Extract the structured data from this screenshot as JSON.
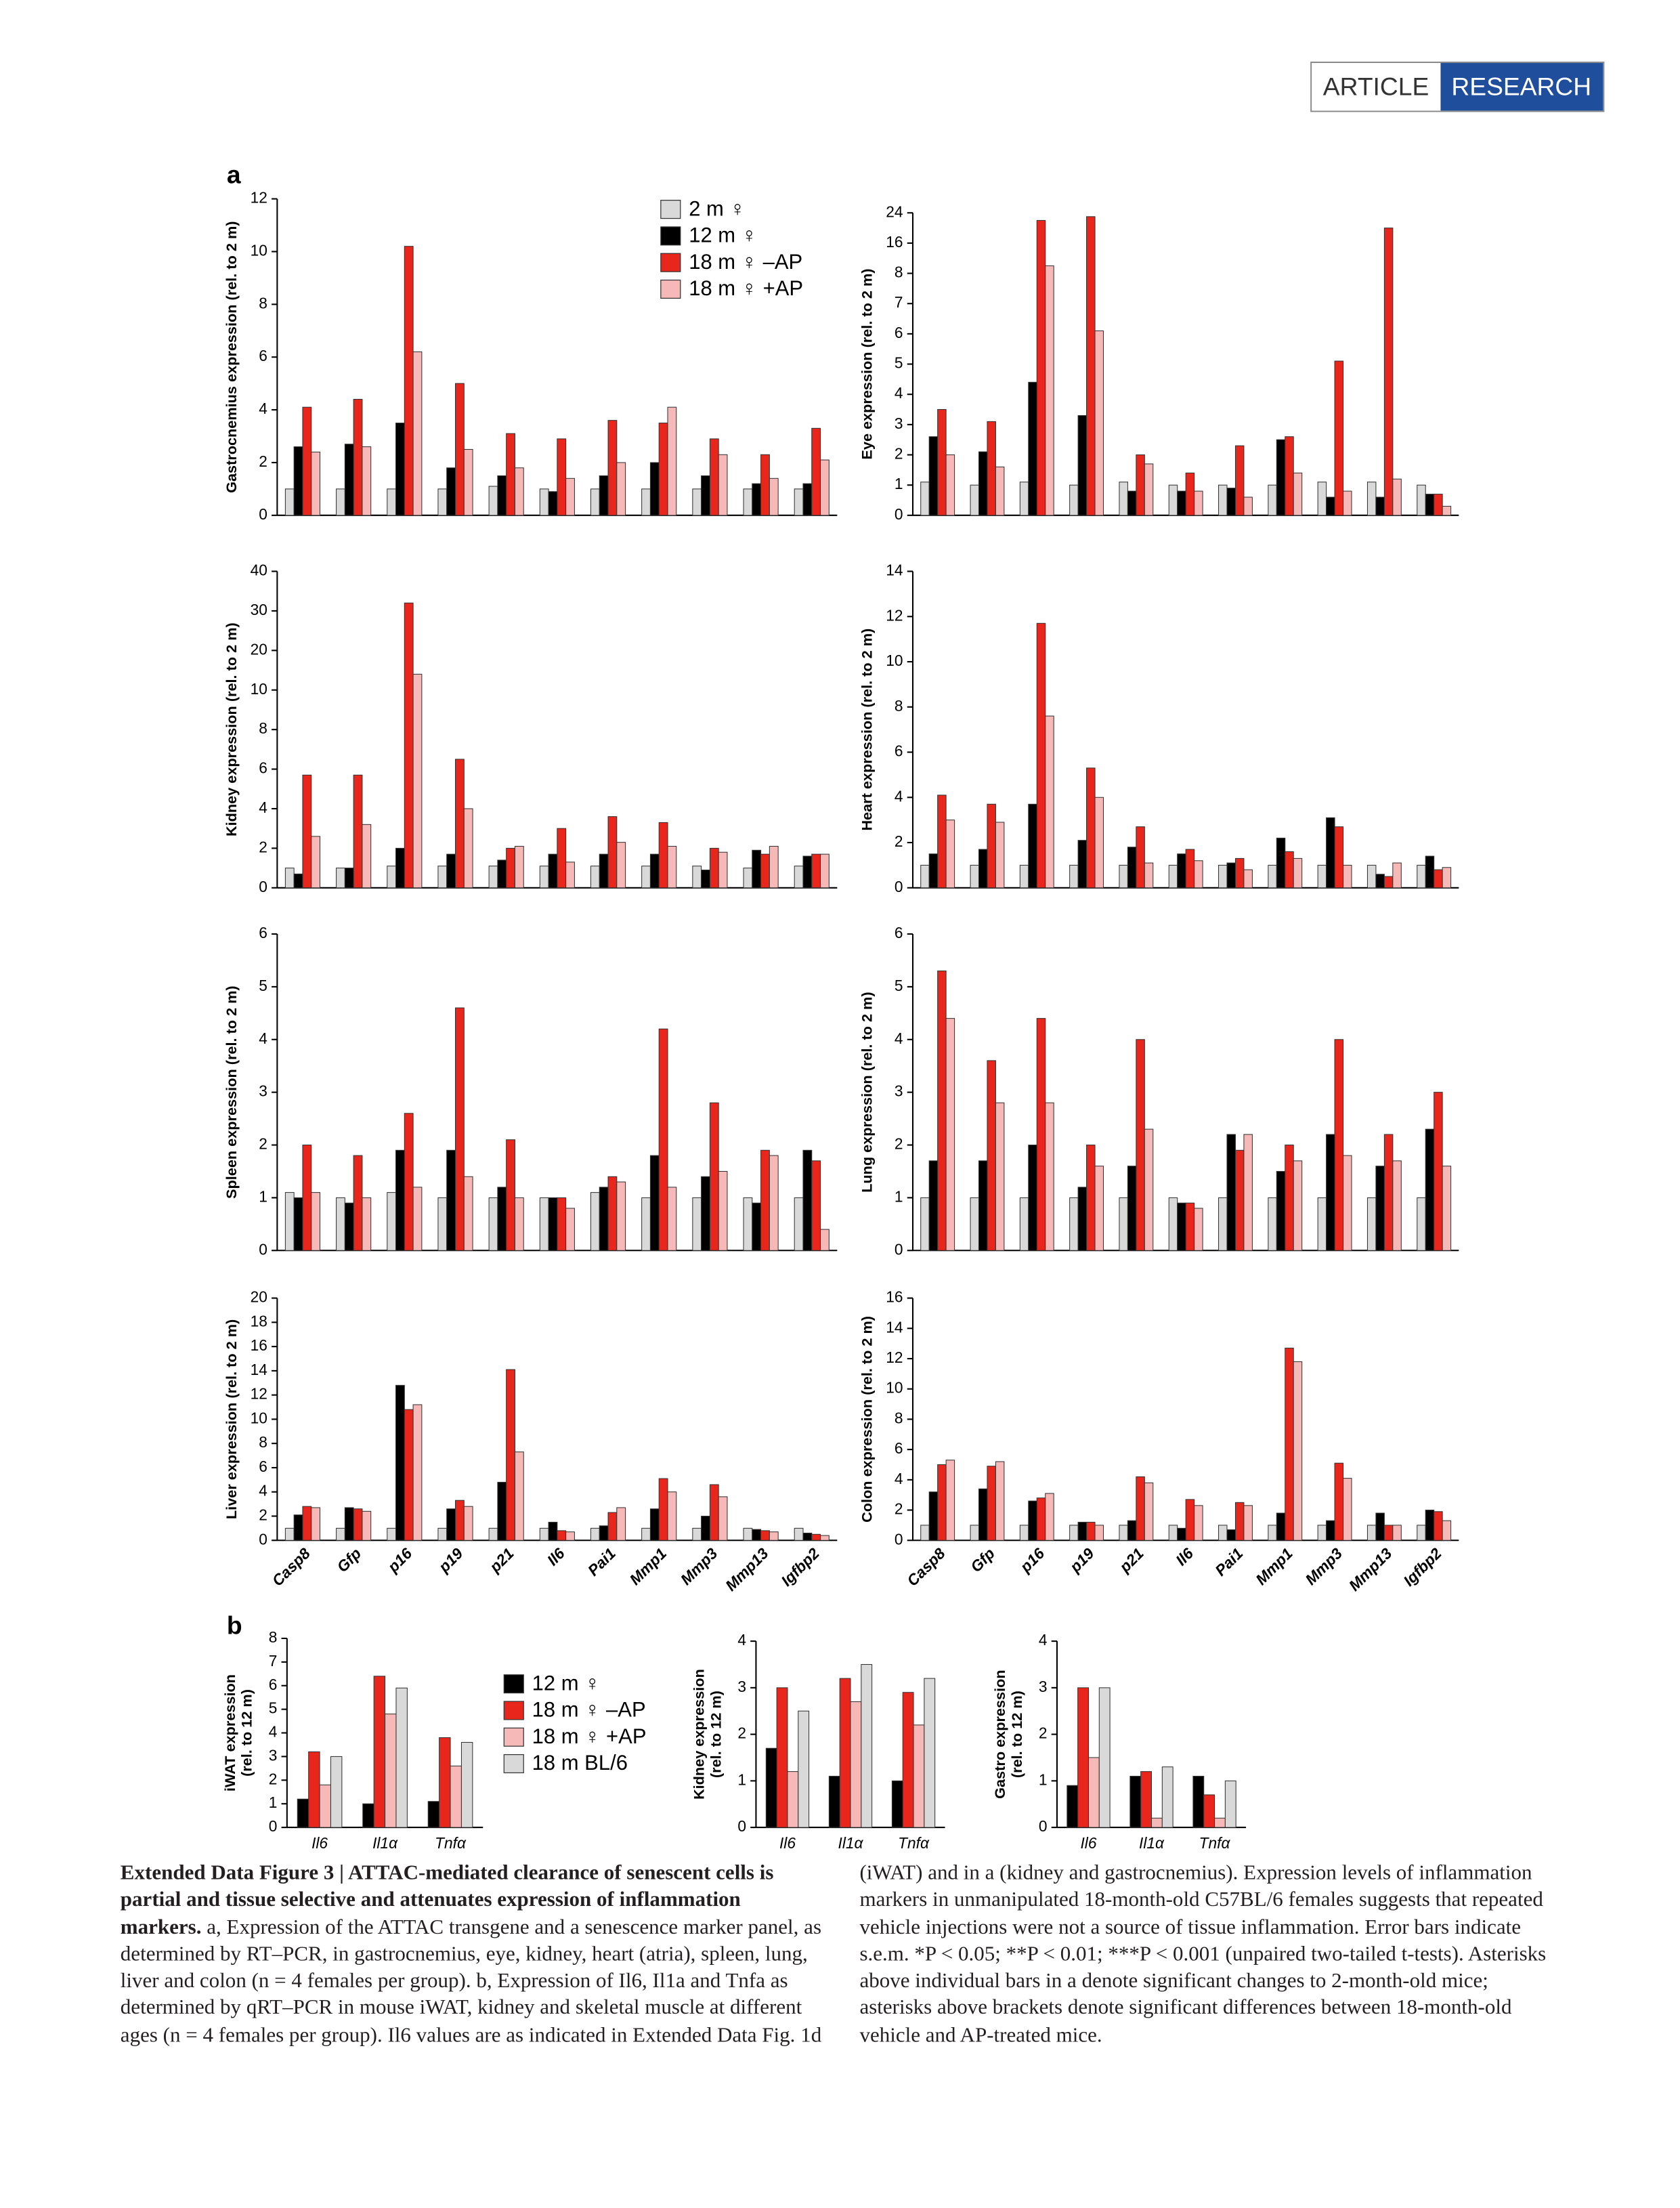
{
  "header": {
    "article": "ARTICLE",
    "research": "RESEARCH"
  },
  "chart_data": [
    {
      "type": "bar",
      "panel": "a",
      "ylabel": [
        "Gastrocnemius expression (rel. to 2 m)"
      ],
      "ylim": [
        0,
        12
      ],
      "yticks": [
        0,
        2,
        4,
        6,
        8,
        10,
        12
      ],
      "legend": "top",
      "series": [
        {
          "name": "2 m ♀",
          "color": "#d9d9d9",
          "values": [
            1.0,
            1.0,
            1.0,
            1.0,
            1.1,
            1.0,
            1.0,
            1.0,
            1.0,
            1.0,
            1.0
          ]
        },
        {
          "name": "12 m ♀",
          "color": "#000000",
          "values": [
            2.6,
            2.7,
            3.5,
            1.8,
            1.5,
            0.9,
            1.5,
            2.0,
            1.5,
            1.2,
            1.2
          ]
        },
        {
          "name": "18 m ♀ –AP",
          "color": "#e8261c",
          "values": [
            4.1,
            4.4,
            10.2,
            5.0,
            3.1,
            2.9,
            3.6,
            3.5,
            2.9,
            2.3,
            3.3
          ]
        },
        {
          "name": "18 m ♀ +AP",
          "color": "#f6b9b7",
          "values": [
            2.4,
            2.6,
            6.2,
            2.5,
            1.8,
            1.4,
            2.0,
            4.1,
            2.3,
            1.4,
            2.1
          ]
        }
      ]
    },
    {
      "type": "bar",
      "ylabel": [
        "Eye expression (rel. to 2 m)"
      ],
      "ylim": [
        0,
        24
      ],
      "yticks": [
        0,
        1,
        2,
        3,
        4,
        5,
        6,
        7,
        8,
        16,
        24
      ],
      "axis_break": true,
      "series": [
        {
          "color": "#d9d9d9",
          "values": [
            1.1,
            1.0,
            1.1,
            1.0,
            1.1,
            1.0,
            1.0,
            1.0,
            1.1,
            1.1,
            1.0
          ]
        },
        {
          "color": "#000000",
          "values": [
            2.6,
            2.1,
            4.4,
            3.3,
            0.8,
            0.8,
            0.9,
            2.5,
            0.6,
            0.6,
            0.7
          ]
        },
        {
          "color": "#e8261c",
          "values": [
            3.5,
            3.1,
            22,
            23,
            2.0,
            1.4,
            2.3,
            2.6,
            5.1,
            20,
            0.7
          ]
        },
        {
          "color": "#f6b9b7",
          "values": [
            2.0,
            1.6,
            10,
            6.1,
            1.7,
            0.8,
            0.6,
            1.4,
            0.8,
            1.2,
            0.3
          ]
        }
      ]
    },
    {
      "type": "bar",
      "ylabel": [
        "Kidney expression (rel. to 2 m)"
      ],
      "ylim": [
        0,
        40
      ],
      "yticks": [
        0,
        2,
        4,
        6,
        8,
        10,
        20,
        30,
        40
      ],
      "axis_break": true,
      "series": [
        {
          "color": "#d9d9d9",
          "values": [
            1.0,
            1.0,
            1.1,
            1.1,
            1.1,
            1.1,
            1.1,
            1.1,
            1.1,
            1.0,
            1.1
          ]
        },
        {
          "color": "#000000",
          "values": [
            0.7,
            1.0,
            2.0,
            1.7,
            1.4,
            1.7,
            1.7,
            1.7,
            0.9,
            1.9,
            1.6
          ]
        },
        {
          "color": "#e8261c",
          "values": [
            5.7,
            5.7,
            32,
            6.5,
            2.0,
            3.0,
            3.6,
            3.3,
            2.0,
            1.7,
            1.7
          ]
        },
        {
          "color": "#f6b9b7",
          "values": [
            2.6,
            3.2,
            14,
            4.0,
            2.1,
            1.3,
            2.3,
            2.1,
            1.8,
            2.1,
            1.7
          ]
        }
      ]
    },
    {
      "type": "bar",
      "ylabel": [
        "Heart expression (rel. to 2 m)"
      ],
      "ylim": [
        0,
        14
      ],
      "yticks": [
        0,
        2,
        4,
        6,
        8,
        10,
        12,
        14
      ],
      "series": [
        {
          "color": "#d9d9d9",
          "values": [
            1.0,
            1.0,
            1.0,
            1.0,
            1.0,
            1.0,
            1.0,
            1.0,
            1.0,
            1.0,
            1.0
          ]
        },
        {
          "color": "#000000",
          "values": [
            1.5,
            1.7,
            3.7,
            2.1,
            1.8,
            1.5,
            1.1,
            2.2,
            3.1,
            0.6,
            1.4
          ]
        },
        {
          "color": "#e8261c",
          "values": [
            4.1,
            3.7,
            11.7,
            5.3,
            2.7,
            1.7,
            1.3,
            1.6,
            2.7,
            0.5,
            0.8
          ]
        },
        {
          "color": "#f6b9b7",
          "values": [
            3.0,
            2.9,
            7.6,
            4.0,
            1.1,
            1.2,
            0.8,
            1.3,
            1.0,
            1.1,
            0.9
          ]
        }
      ]
    },
    {
      "type": "bar",
      "ylabel": [
        "Spleen expression (rel. to 2 m)"
      ],
      "ylim": [
        0,
        6
      ],
      "yticks": [
        0,
        1,
        2,
        3,
        4,
        5,
        6
      ],
      "series": [
        {
          "color": "#d9d9d9",
          "values": [
            1.1,
            1.0,
            1.1,
            1.0,
            1.0,
            1.0,
            1.1,
            1.0,
            1.0,
            1.0,
            1.0
          ]
        },
        {
          "color": "#000000",
          "values": [
            1.0,
            0.9,
            1.9,
            1.9,
            1.2,
            1.0,
            1.2,
            1.8,
            1.4,
            0.9,
            1.9
          ]
        },
        {
          "color": "#e8261c",
          "values": [
            2.0,
            1.8,
            2.6,
            4.6,
            2.1,
            1.0,
            1.4,
            4.2,
            2.8,
            1.9,
            1.7
          ]
        },
        {
          "color": "#f6b9b7",
          "values": [
            1.1,
            1.0,
            1.2,
            1.4,
            1.0,
            0.8,
            1.3,
            1.2,
            1.5,
            1.8,
            0.4
          ]
        }
      ]
    },
    {
      "type": "bar",
      "ylabel": [
        "Lung expression (rel. to 2 m)"
      ],
      "ylim": [
        0,
        6
      ],
      "yticks": [
        0,
        1,
        2,
        3,
        4,
        5,
        6
      ],
      "series": [
        {
          "color": "#d9d9d9",
          "values": [
            1.0,
            1.0,
            1.0,
            1.0,
            1.0,
            1.0,
            1.0,
            1.0,
            1.0,
            1.0,
            1.0
          ]
        },
        {
          "color": "#000000",
          "values": [
            1.7,
            1.7,
            2.0,
            1.2,
            1.6,
            0.9,
            2.2,
            1.5,
            2.2,
            1.6,
            2.3
          ]
        },
        {
          "color": "#e8261c",
          "values": [
            5.3,
            3.6,
            4.4,
            2.0,
            4.0,
            0.9,
            1.9,
            2.0,
            4.0,
            2.2,
            3.0
          ]
        },
        {
          "color": "#f6b9b7",
          "values": [
            4.4,
            2.8,
            2.8,
            1.6,
            2.3,
            0.8,
            2.2,
            1.7,
            1.8,
            1.7,
            1.6
          ]
        }
      ]
    },
    {
      "type": "bar",
      "ylabel": [
        "Liver expression (rel. to 2 m)"
      ],
      "ylim": [
        0,
        20
      ],
      "yticks": [
        0,
        2,
        4,
        6,
        8,
        10,
        12,
        14,
        16,
        18,
        20
      ],
      "categories": [
        "Casp8",
        "Gfp",
        "p16",
        "p19",
        "p21",
        "Il6",
        "Pai1",
        "Mmp1",
        "Mmp3",
        "Mmp13",
        "Igfbp2"
      ],
      "series": [
        {
          "color": "#d9d9d9",
          "values": [
            1.0,
            1.0,
            1.0,
            1.0,
            1.0,
            1.0,
            1.0,
            1.0,
            1.0,
            1.0,
            1.0
          ]
        },
        {
          "color": "#000000",
          "values": [
            2.1,
            2.7,
            12.8,
            2.6,
            4.8,
            1.5,
            1.2,
            2.6,
            2.0,
            0.9,
            0.6
          ]
        },
        {
          "color": "#e8261c",
          "values": [
            2.8,
            2.6,
            10.8,
            3.3,
            14.1,
            0.8,
            2.3,
            5.1,
            4.6,
            0.8,
            0.5
          ]
        },
        {
          "color": "#f6b9b7",
          "values": [
            2.7,
            2.4,
            11.2,
            2.8,
            7.3,
            0.7,
            2.7,
            4.0,
            3.6,
            0.7,
            0.4
          ]
        }
      ]
    },
    {
      "type": "bar",
      "ylabel": [
        "Colon expression (rel. to 2 m)"
      ],
      "ylim": [
        0,
        16
      ],
      "yticks": [
        0,
        2,
        4,
        6,
        8,
        10,
        12,
        14,
        16
      ],
      "categories": [
        "Casp8",
        "Gfp",
        "p16",
        "p19",
        "p21",
        "Il6",
        "Pai1",
        "Mmp1",
        "Mmp3",
        "Mmp13",
        "Igfbp2"
      ],
      "series": [
        {
          "color": "#d9d9d9",
          "values": [
            1.0,
            1.0,
            1.0,
            1.0,
            1.0,
            1.0,
            1.0,
            1.0,
            1.0,
            1.0,
            1.0
          ]
        },
        {
          "color": "#000000",
          "values": [
            3.2,
            3.4,
            2.6,
            1.2,
            1.3,
            0.8,
            0.7,
            1.8,
            1.3,
            1.8,
            2.0
          ]
        },
        {
          "color": "#e8261c",
          "values": [
            5.0,
            4.9,
            2.8,
            1.2,
            4.2,
            2.7,
            2.5,
            12.7,
            5.1,
            1.0,
            1.9
          ]
        },
        {
          "color": "#f6b9b7",
          "values": [
            5.3,
            5.2,
            3.1,
            1.0,
            3.8,
            2.3,
            2.3,
            11.8,
            4.1,
            1.0,
            1.3
          ]
        }
      ]
    },
    {
      "type": "bar",
      "panel": "b",
      "ylabel": [
        "iWAT expression",
        "(rel. to 12 m)"
      ],
      "ylim": [
        0,
        8
      ],
      "yticks": [
        0,
        1,
        2,
        3,
        4,
        5,
        6,
        7,
        8
      ],
      "legend": "right",
      "categories": [
        "Il6",
        "Il1α",
        "Tnfα"
      ],
      "series": [
        {
          "name": "12 m ♀",
          "color": "#000000",
          "values": [
            1.2,
            1.0,
            1.1
          ]
        },
        {
          "name": "18 m ♀ –AP",
          "color": "#e8261c",
          "values": [
            3.2,
            6.4,
            3.8
          ]
        },
        {
          "name": "18 m ♀ +AP",
          "color": "#f6b9b7",
          "values": [
            1.8,
            4.8,
            2.6
          ]
        },
        {
          "name": "18 m BL/6",
          "color": "#d9d9d9",
          "values": [
            3.0,
            5.9,
            3.6
          ]
        }
      ]
    },
    {
      "type": "bar",
      "ylabel": [
        "Kidney expression",
        "(rel. to 12 m)"
      ],
      "ylim": [
        0,
        4
      ],
      "yticks": [
        0,
        1,
        2,
        3,
        4
      ],
      "categories": [
        "Il6",
        "Il1α",
        "Tnfα"
      ],
      "series": [
        {
          "color": "#000000",
          "values": [
            1.7,
            1.1,
            1.0
          ]
        },
        {
          "color": "#e8261c",
          "values": [
            3.0,
            3.2,
            2.9
          ]
        },
        {
          "color": "#f6b9b7",
          "values": [
            1.2,
            2.7,
            2.2
          ]
        },
        {
          "color": "#d9d9d9",
          "values": [
            2.5,
            3.5,
            3.2
          ]
        }
      ]
    },
    {
      "type": "bar",
      "ylabel": [
        "Gastro expression",
        "(rel. to 12 m)"
      ],
      "ylim": [
        0,
        4
      ],
      "yticks": [
        0,
        1,
        2,
        3,
        4
      ],
      "categories": [
        "Il6",
        "Il1α",
        "Tnfα"
      ],
      "series": [
        {
          "color": "#000000",
          "values": [
            0.9,
            1.1,
            1.1
          ]
        },
        {
          "color": "#e8261c",
          "values": [
            3.0,
            1.2,
            0.7
          ]
        },
        {
          "color": "#f6b9b7",
          "values": [
            1.5,
            0.2,
            0.2
          ]
        },
        {
          "color": "#d9d9d9",
          "values": [
            3.0,
            1.3,
            1.0
          ]
        }
      ]
    }
  ],
  "caption": {
    "title": "Extended Data Figure 3 | ATTAC-mediated clearance of senescent cells is partial and tissue selective and attenuates expression of inflammation markers.",
    "body": "a, Expression of the ATTAC transgene and a senescence marker panel, as determined by RT–PCR, in gastrocnemius, eye, kidney, heart (atria), spleen, lung, liver and colon (n = 4 females per group). b, Expression of Il6, Il1a and Tnfa as determined by qRT–PCR in mouse iWAT, kidney and skeletal muscle at different ages (n = 4 females per group). Il6 values are as indicated in Extended Data Fig. 1d (iWAT) and in a (kidney and gastrocnemius). Expression levels of inflammation markers in unmanipulated 18-month-old C57BL/6 females suggests that repeated vehicle injections were not a source of tissue inflammation. Error bars indicate s.e.m. *P < 0.05; **P < 0.01; ***P < 0.001 (unpaired two-tailed t-tests). Asterisks above individual bars in a denote significant changes to 2-month-old mice; asterisks above brackets denote significant differences between 18-month-old vehicle and AP-treated mice."
  }
}
